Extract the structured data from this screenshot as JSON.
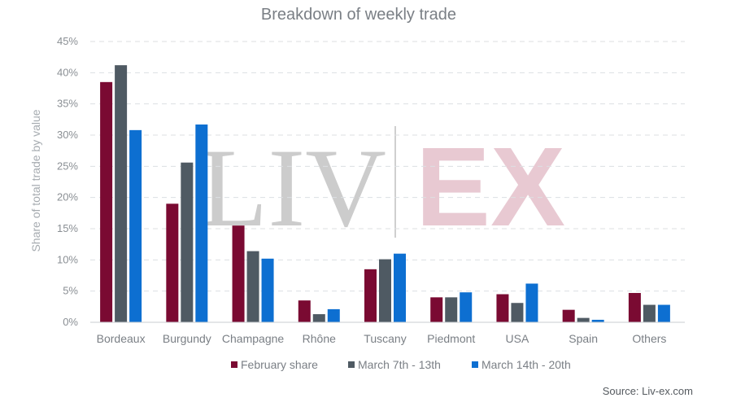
{
  "watermark": {
    "left": "LIV",
    "right": "EX"
  },
  "source": "Source: Liv-ex.com",
  "colors": {
    "series": [
      "#7a0a32",
      "#4f5a63",
      "#0d6fd1"
    ]
  },
  "chart_data": {
    "type": "bar",
    "title": "Breakdown of weekly trade",
    "xlabel": "",
    "ylabel": "Share of total trade by value",
    "ylim": [
      0,
      45
    ],
    "ytick_step": 5,
    "yticks": [
      "0%",
      "5%",
      "10%",
      "15%",
      "20%",
      "25%",
      "30%",
      "35%",
      "40%",
      "45%"
    ],
    "grid": true,
    "legend_position": "bottom",
    "categories": [
      "Bordeaux",
      "Burgundy",
      "Champagne",
      "Rhône",
      "Tuscany",
      "Piedmont",
      "USA",
      "Spain",
      "Others"
    ],
    "series": [
      {
        "name": "February share",
        "values": [
          38.5,
          19.0,
          15.5,
          3.5,
          8.5,
          4.0,
          4.5,
          2.0,
          4.7
        ]
      },
      {
        "name": "March 7th - 13th",
        "values": [
          41.2,
          25.6,
          11.4,
          1.3,
          10.1,
          4.0,
          3.1,
          0.7,
          2.8
        ]
      },
      {
        "name": "March 14th - 20th",
        "values": [
          30.8,
          31.7,
          10.2,
          2.1,
          11.0,
          4.8,
          6.2,
          0.4,
          2.8
        ]
      }
    ]
  }
}
